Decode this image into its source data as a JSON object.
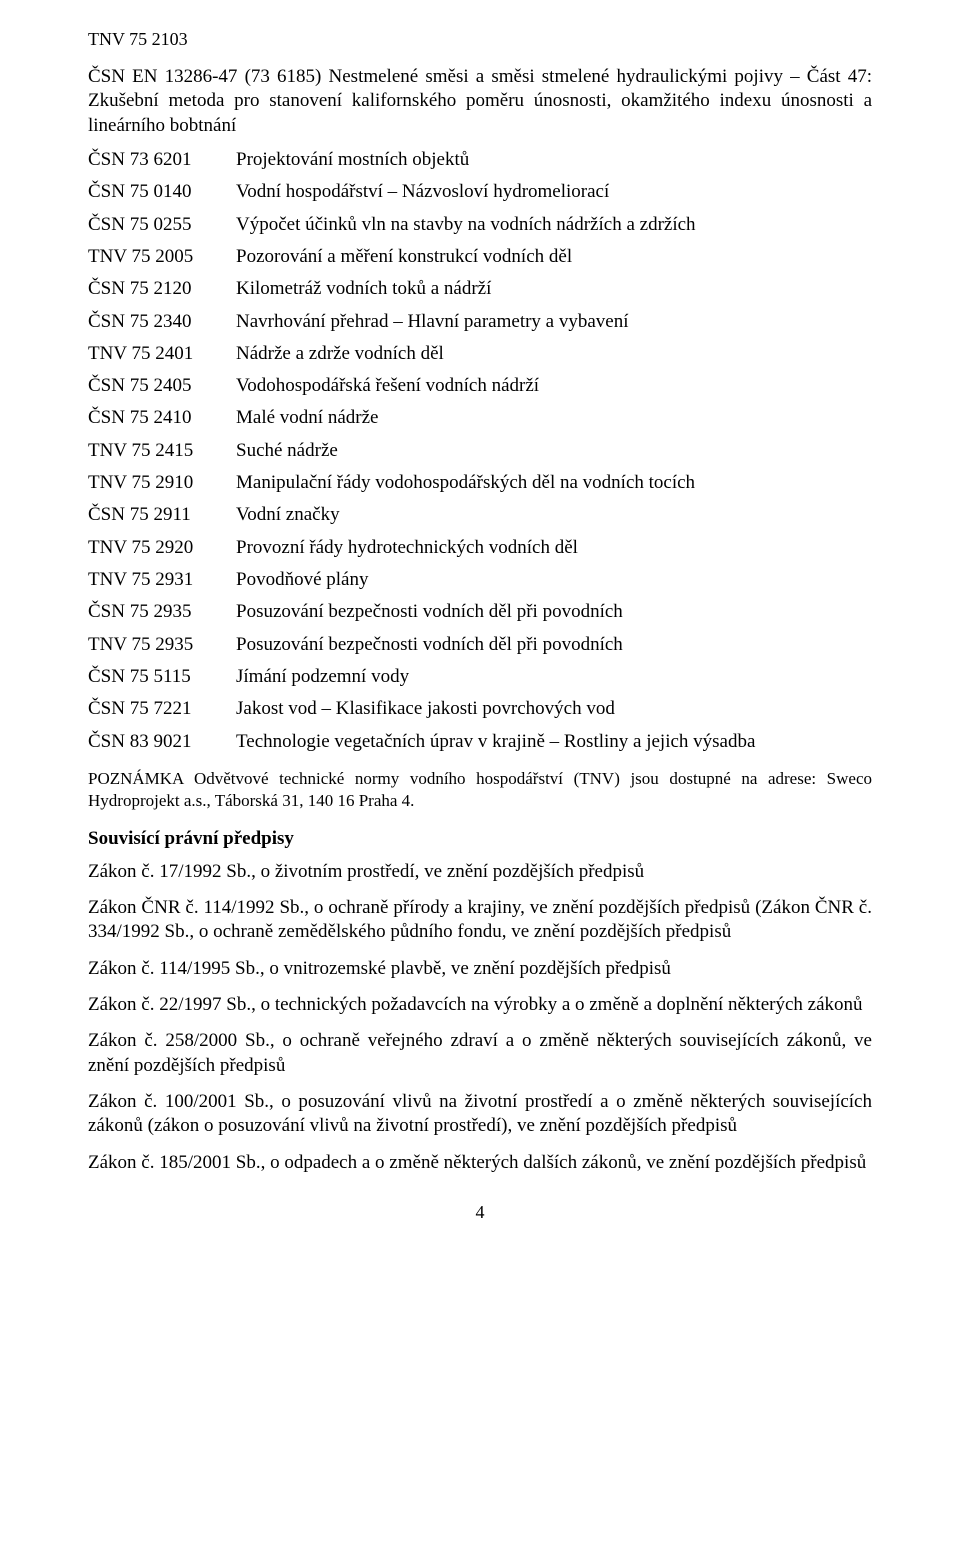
{
  "header": "TNV 75 2103",
  "intro": "ČSN EN 13286-47 (73 6185)   Nestmelené směsi a směsi stmelené hydraulickými pojivy – Část 47: Zkušební metoda pro stanovení kalifornského poměru únosnosti, okamžitého indexu únosnosti a lineárního bobtnání",
  "refs": [
    {
      "code": "ČSN 73 6201",
      "title": "Projektování mostních objektů"
    },
    {
      "code": "ČSN 75 0140",
      "title": "Vodní hospodářství – Názvosloví hydromeliorací"
    },
    {
      "code": "ČSN 75 0255",
      "title": "Výpočet účinků vln na stavby na vodních nádržích a zdržích"
    },
    {
      "code": "TNV 75 2005",
      "title": "Pozorování a měření konstrukcí vodních děl"
    },
    {
      "code": "ČSN 75 2120",
      "title": "Kilometráž vodních toků a nádrží"
    },
    {
      "code": "ČSN 75 2340",
      "title": "Navrhování přehrad – Hlavní parametry a vybavení"
    },
    {
      "code": "TNV 75 2401",
      "title": "Nádrže a zdrže vodních děl"
    },
    {
      "code": "ČSN 75 2405",
      "title": "Vodohospodářská řešení vodních nádrží"
    },
    {
      "code": "ČSN 75 2410",
      "title": "Malé vodní nádrže"
    },
    {
      "code": "TNV 75 2415",
      "title": "Suché nádrže"
    },
    {
      "code": "TNV 75 2910",
      "title": "Manipulační řády vodohospodářských děl na vodních tocích"
    },
    {
      "code": "ČSN 75 2911",
      "title": "Vodní značky"
    },
    {
      "code": "TNV 75 2920",
      "title": "Provozní řády hydrotechnických vodních děl"
    },
    {
      "code": "TNV 75 2931",
      "title": "Povodňové plány"
    },
    {
      "code": "ČSN 75 2935",
      "title": "Posuzování bezpečnosti vodních děl při povodních"
    },
    {
      "code": "TNV 75 2935",
      "title": "Posuzování bezpečnosti vodních děl při povodních"
    },
    {
      "code": "ČSN 75 5115",
      "title": "Jímání podzemní vody"
    },
    {
      "code": "ČSN 75 7221",
      "title": "Jakost vod – Klasifikace jakosti povrchových vod"
    },
    {
      "code": "ČSN 83 9021",
      "title": "Technologie vegetačních úprav v krajině – Rostliny a jejich výsadba"
    }
  ],
  "note": "POZNÁMKA   Odvětvové technické normy vodního hospodářství (TNV) jsou dostupné na adrese: Sweco Hydroprojekt a.s., Táborská 31, 140 16 Praha 4.",
  "subhead": "Souvisící právní předpisy",
  "laws": [
    "Zákon č. 17/1992 Sb., o životním prostředí, ve znění pozdějších předpisů",
    "Zákon ČNR č. 114/1992 Sb., o ochraně přírody a krajiny, ve znění pozdějších předpisů (Zákon ČNR č. 334/1992 Sb., o ochraně zemědělského půdního fondu, ve znění pozdějších předpisů",
    "Zákon č. 114/1995 Sb., o vnitrozemské plavbě, ve znění pozdějších předpisů",
    "Zákon č. 22/1997 Sb., o technických požadavcích na výrobky a o změně a doplnění některých zákonů",
    "Zákon č. 258/2000 Sb., o ochraně veřejného zdraví a o změně některých souvisejících zákonů, ve znění pozdějších předpisů",
    "Zákon č. 100/2001 Sb., o posuzování vlivů na životní prostředí a o změně některých souvisejících zákonů (zákon o posuzování vlivů na životní prostředí), ve znění pozdějších předpisů",
    "Zákon č. 185/2001 Sb., o odpadech a o změně některých dalších zákonů, ve znění pozdějších předpisů"
  ],
  "pagenum": "4"
}
